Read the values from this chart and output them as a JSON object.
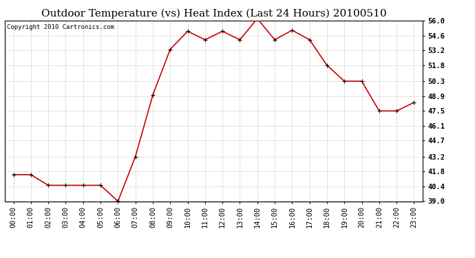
{
  "title": "Outdoor Temperature (vs) Heat Index (Last 24 Hours) 20100510",
  "copyright_text": "Copyright 2010 Cartronics.com",
  "x_labels": [
    "00:00",
    "01:00",
    "02:00",
    "03:00",
    "04:00",
    "05:00",
    "06:00",
    "07:00",
    "08:00",
    "09:00",
    "10:00",
    "11:00",
    "12:00",
    "13:00",
    "14:00",
    "15:00",
    "16:00",
    "17:00",
    "18:00",
    "19:00",
    "20:00",
    "21:00",
    "22:00",
    "23:00"
  ],
  "y_values": [
    41.5,
    41.5,
    40.5,
    40.5,
    40.5,
    40.5,
    39.0,
    43.2,
    49.0,
    53.3,
    55.0,
    54.2,
    55.0,
    54.2,
    56.2,
    54.2,
    55.1,
    54.2,
    51.8,
    50.3,
    50.3,
    47.5,
    47.5,
    48.3
  ],
  "y_ticks": [
    39.0,
    40.4,
    41.8,
    43.2,
    44.7,
    46.1,
    47.5,
    48.9,
    50.3,
    51.8,
    53.2,
    54.6,
    56.0
  ],
  "ylim": [
    39.0,
    56.0
  ],
  "line_color": "#cc0000",
  "background_color": "#ffffff",
  "grid_color": "#c8c8c8",
  "title_fontsize": 11,
  "tick_fontsize": 7.5,
  "copyright_fontsize": 6.5
}
